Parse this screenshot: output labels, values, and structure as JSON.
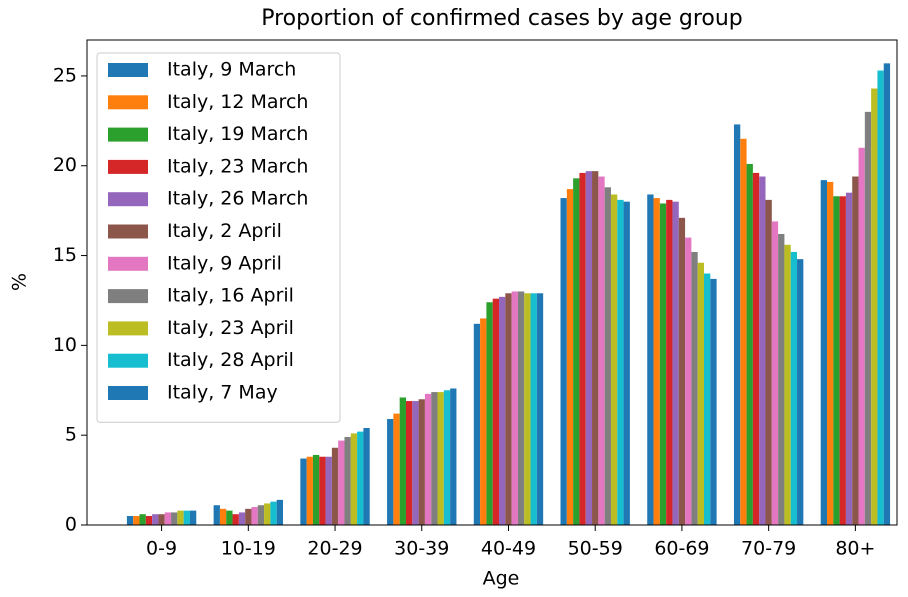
{
  "chart_data": {
    "type": "bar",
    "title": "Proportion of confirmed cases by age group",
    "x_label": "Age",
    "y_label": "%",
    "categories": [
      "0-9",
      "10-19",
      "20-29",
      "30-39",
      "40-49",
      "50-59",
      "60-69",
      "70-79",
      "80+"
    ],
    "series": [
      {
        "name": "Italy, 9 March",
        "color": "#1f77b4",
        "values": [
          0.5,
          1.1,
          3.7,
          5.9,
          11.2,
          18.2,
          18.4,
          22.3,
          19.2
        ]
      },
      {
        "name": "Italy, 12 March",
        "color": "#ff7f0e",
        "values": [
          0.5,
          0.9,
          3.8,
          6.2,
          11.5,
          18.7,
          18.2,
          21.5,
          19.1
        ]
      },
      {
        "name": "Italy, 19 March",
        "color": "#2ca02c",
        "values": [
          0.6,
          0.8,
          3.9,
          7.1,
          12.4,
          19.3,
          17.9,
          20.1,
          18.3
        ]
      },
      {
        "name": "Italy, 23 March",
        "color": "#d62728",
        "values": [
          0.5,
          0.6,
          3.8,
          6.9,
          12.6,
          19.6,
          18.1,
          19.6,
          18.3
        ]
      },
      {
        "name": "Italy, 26 March",
        "color": "#9467bd",
        "values": [
          0.6,
          0.7,
          3.8,
          6.9,
          12.7,
          19.7,
          18.0,
          19.4,
          18.5
        ]
      },
      {
        "name": "Italy, 2 April",
        "color": "#8c564b",
        "values": [
          0.6,
          0.9,
          4.3,
          7.0,
          12.9,
          19.7,
          17.1,
          18.1,
          19.4
        ]
      },
      {
        "name": "Italy, 9 April",
        "color": "#e377c2",
        "values": [
          0.7,
          1.0,
          4.7,
          7.3,
          13.0,
          19.4,
          16.0,
          16.9,
          21.0
        ]
      },
      {
        "name": "Italy, 16 April",
        "color": "#7f7f7f",
        "values": [
          0.7,
          1.1,
          4.9,
          7.4,
          13.0,
          18.8,
          15.2,
          16.2,
          23.0
        ]
      },
      {
        "name": "Italy, 23 April",
        "color": "#bcbd22",
        "values": [
          0.8,
          1.2,
          5.1,
          7.4,
          12.9,
          18.4,
          14.6,
          15.6,
          24.3
        ]
      },
      {
        "name": "Italy, 28 April",
        "color": "#17becf",
        "values": [
          0.8,
          1.3,
          5.2,
          7.5,
          12.9,
          18.1,
          14.0,
          15.2,
          25.3
        ]
      },
      {
        "name": "Italy, 7 May",
        "color": "#1f77b4",
        "values": [
          0.8,
          1.4,
          5.4,
          7.6,
          12.9,
          18.0,
          13.7,
          14.8,
          25.7
        ]
      }
    ],
    "ylim": [
      0,
      27
    ],
    "yticks": [
      0,
      5,
      10,
      15,
      20,
      25
    ],
    "legend": "upper left"
  }
}
